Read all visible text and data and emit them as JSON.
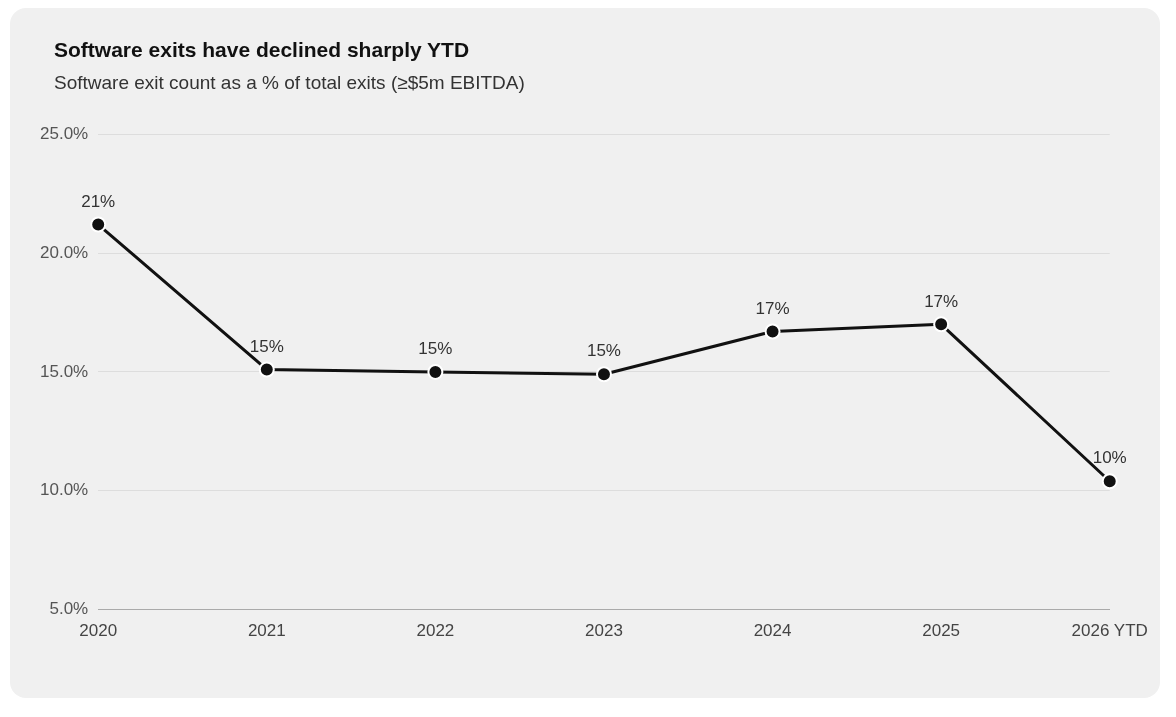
{
  "chart_data": {
    "type": "line",
    "title": "Software exits have declined sharply YTD",
    "subtitle": "Software exit count as a % of total exits (≥$5m EBITDA)",
    "categories": [
      "2020",
      "2021",
      "2022",
      "2023",
      "2024",
      "2025",
      "2026 YTD"
    ],
    "series": [
      {
        "color": "#111111",
        "values": [
          21.2,
          15.1,
          15.0,
          14.9,
          16.7,
          17.0,
          10.4
        ],
        "value_labels": [
          "21%",
          "15%",
          "15%",
          "15%",
          "17%",
          "17%",
          "10%"
        ]
      }
    ],
    "ylim": [
      5,
      25
    ],
    "yticks": [
      {
        "value": 5,
        "label": "5.0%"
      },
      {
        "value": 10,
        "label": "10.0%"
      },
      {
        "value": 15,
        "label": "15.0%"
      },
      {
        "value": 20,
        "label": "20.0%"
      },
      {
        "value": 25,
        "label": "25.0%"
      }
    ],
    "grid": "y",
    "marker": "circle",
    "line_style": "solid",
    "legend": false
  }
}
